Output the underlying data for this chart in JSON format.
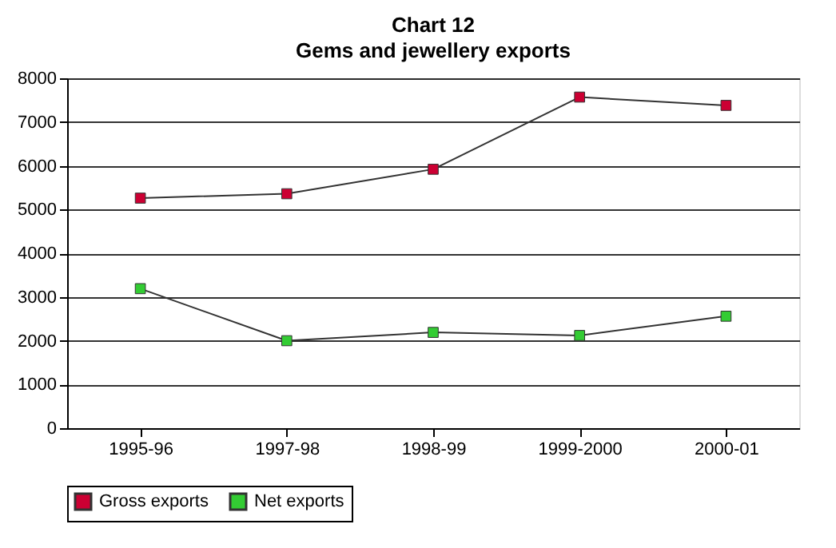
{
  "chart_data": {
    "type": "line",
    "title": "Chart 12",
    "subtitle": "Gems and jewellery exports",
    "categories": [
      "1995-96",
      "1997-98",
      "1998-99",
      "1999-2000",
      "2000-01"
    ],
    "series": [
      {
        "name": "Gross exports",
        "color": "#cc0033",
        "values": [
          5260,
          5360,
          5920,
          7570,
          7380
        ]
      },
      {
        "name": "Net exports",
        "color": "#33cc33",
        "values": [
          3190,
          2000,
          2190,
          2120,
          2560
        ]
      }
    ],
    "ylim": [
      0,
      8000
    ],
    "yticks": [
      0,
      1000,
      2000,
      3000,
      4000,
      5000,
      6000,
      7000,
      8000
    ],
    "grid": "y",
    "legend": "bottom",
    "marker": "square",
    "line_style": "solid"
  }
}
